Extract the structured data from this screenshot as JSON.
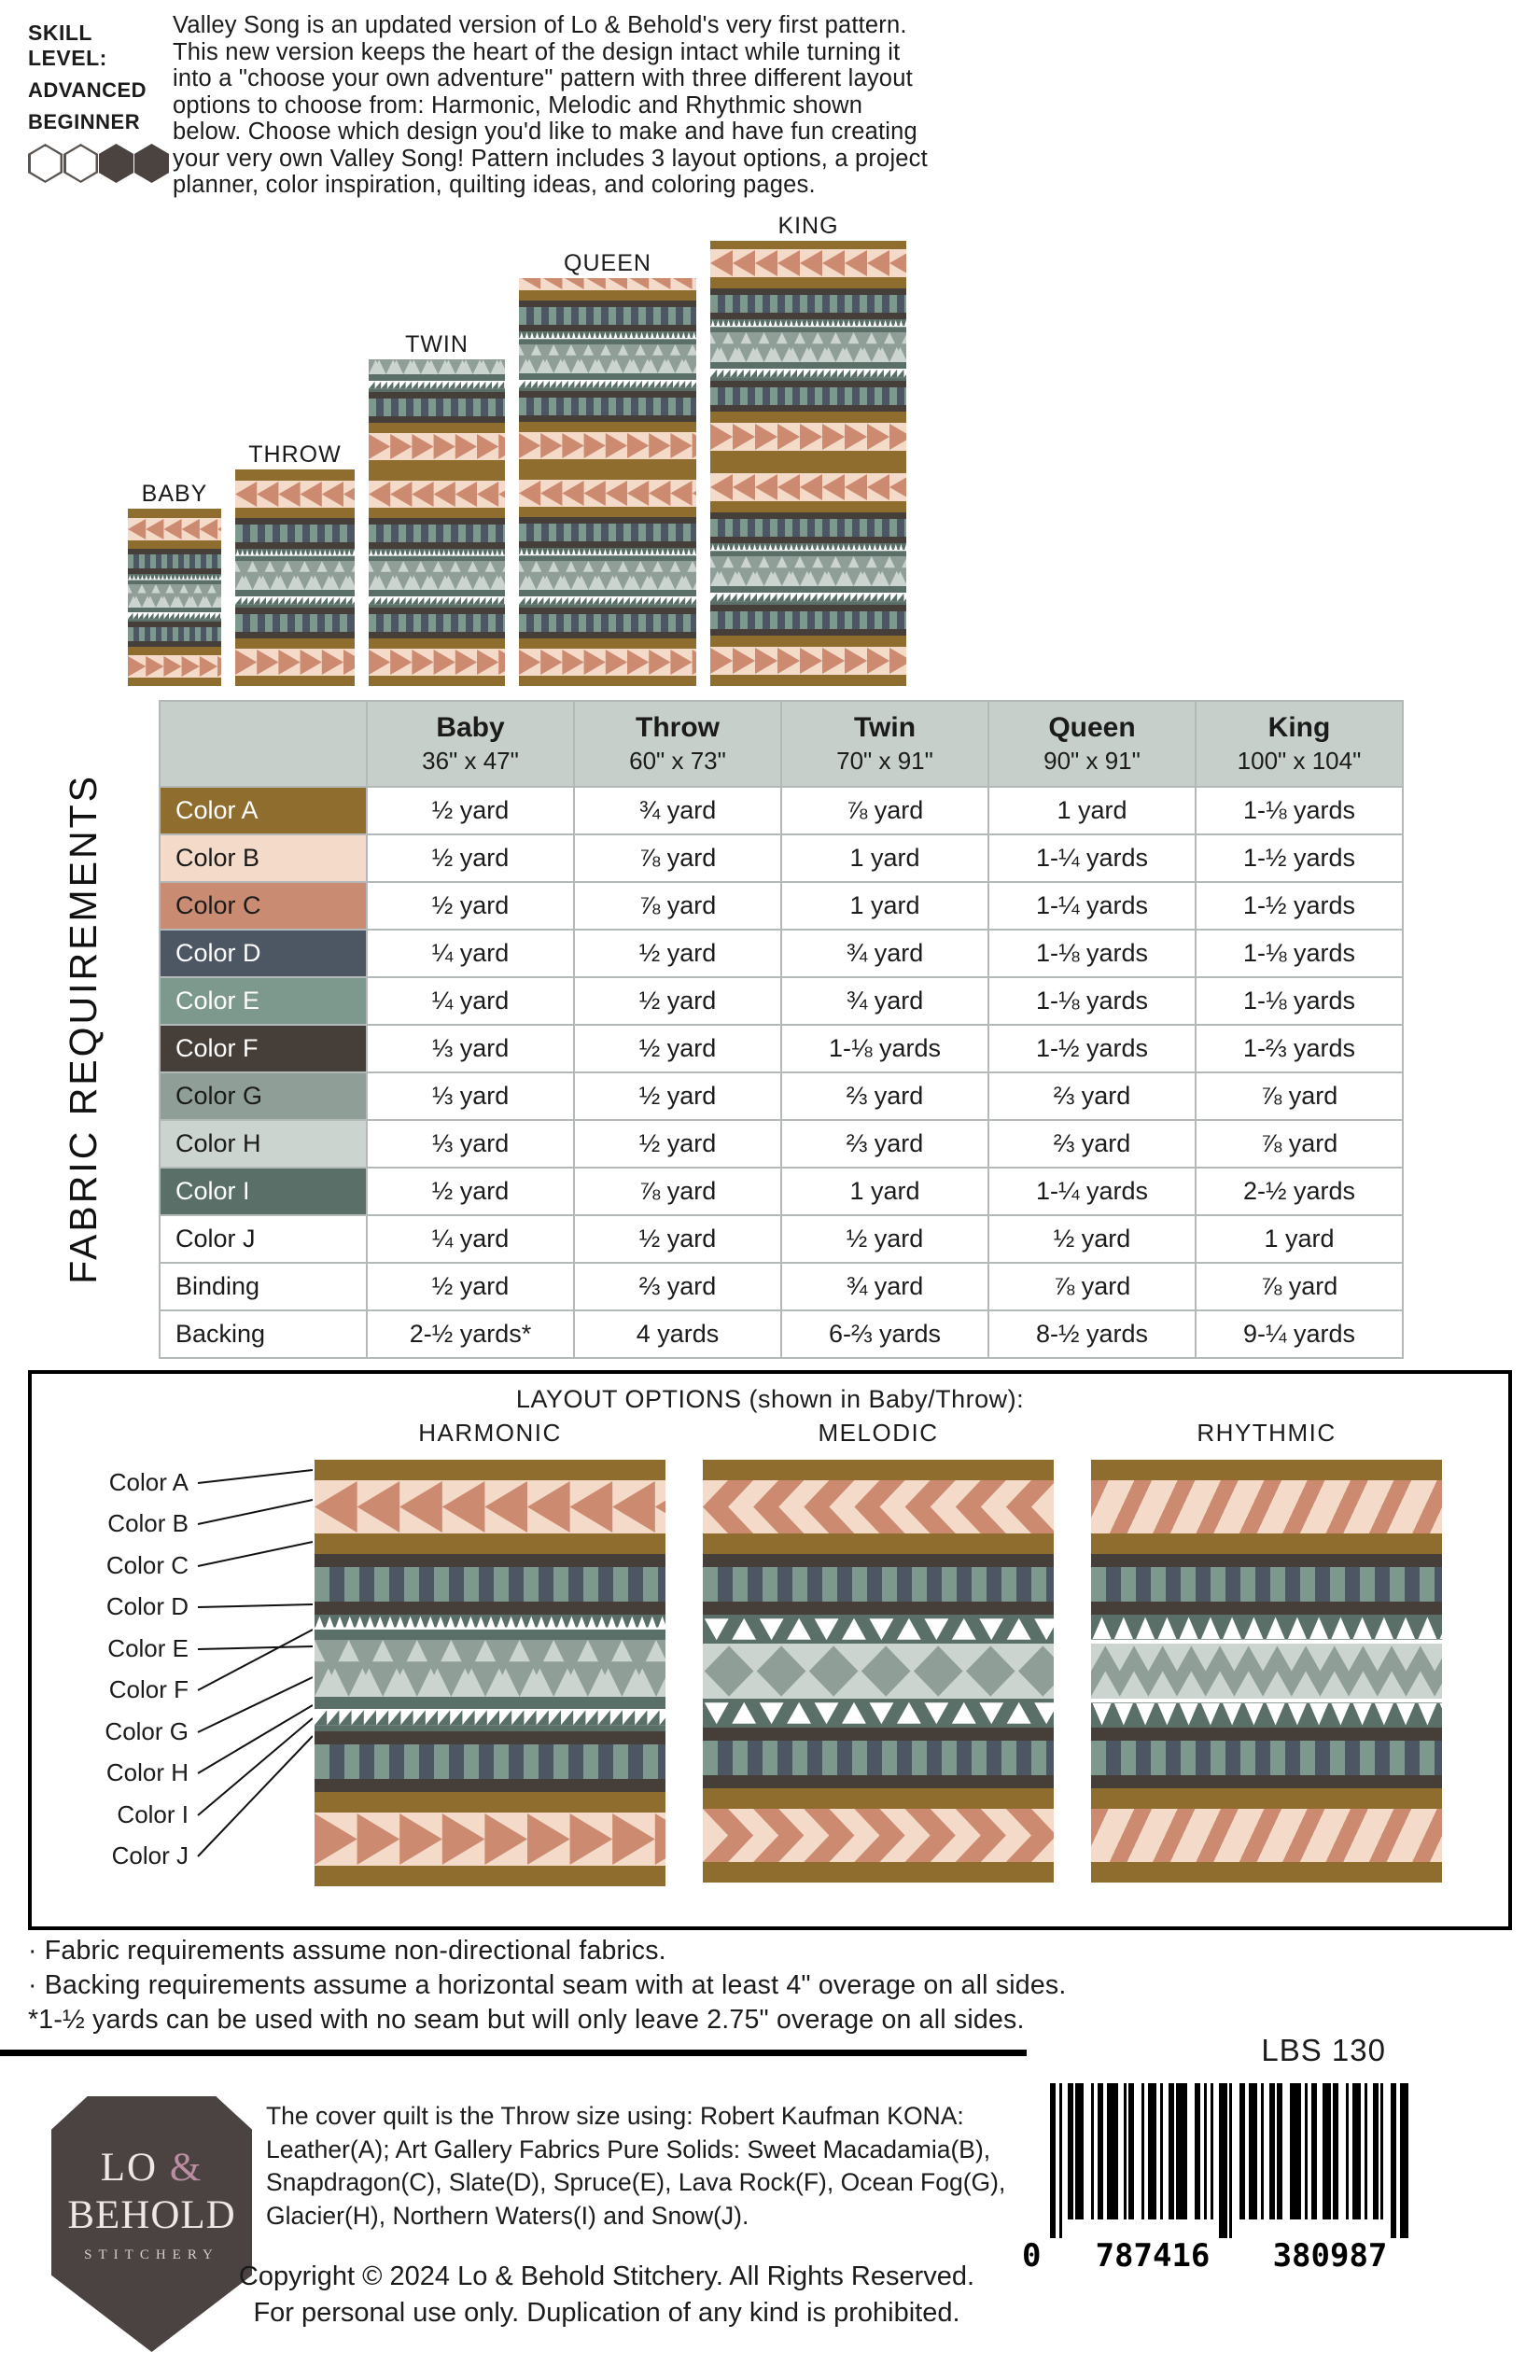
{
  "skill": {
    "label": "SKILL LEVEL:",
    "level_line1": "ADVANCED",
    "level_line2": "BEGINNER",
    "hexes_total": 4,
    "hexes_filled": 2
  },
  "intro": "Valley Song is an updated version of Lo & Behold's very first pattern. This new version keeps the heart of the design intact while turning it into a \"choose your own adventure\" pattern with three different layout options to choose from: Harmonic, Melodic and Rhythmic shown below. Choose which design you'd like to make and have fun creating your very own Valley Song! Pattern includes 3 layout options, a project planner, color inspiration, quilting ideas, and coloring pages.",
  "previews": [
    {
      "name": "BABY"
    },
    {
      "name": "THROW"
    },
    {
      "name": "TWIN"
    },
    {
      "name": "QUEEN"
    },
    {
      "name": "KING"
    }
  ],
  "table": {
    "side_label": "FABRIC REQUIREMENTS",
    "columns": [
      {
        "name": "Baby",
        "dims": "36\" x 47\""
      },
      {
        "name": "Throw",
        "dims": "60\" x 73\""
      },
      {
        "name": "Twin",
        "dims": "70\" x 91\""
      },
      {
        "name": "Queen",
        "dims": "90\" x 91\""
      },
      {
        "name": "King",
        "dims": "100\" x 104\""
      }
    ],
    "rows": [
      {
        "label": "Color A",
        "bg": "#8f6d2f",
        "fg": "#ffffff",
        "values": [
          "½ yard",
          "¾ yard",
          "⅞ yard",
          "1 yard",
          "1-⅛ yards"
        ]
      },
      {
        "label": "Color B",
        "bg": "#f4dac9",
        "fg": "#1b1b1b",
        "values": [
          "½ yard",
          "⅞ yard",
          "1 yard",
          "1-¼ yards",
          "1-½ yards"
        ]
      },
      {
        "label": "Color C",
        "bg": "#c98c73",
        "fg": "#1b1b1b",
        "values": [
          "½ yard",
          "⅞ yard",
          "1 yard",
          "1-¼ yards",
          "1-½ yards"
        ]
      },
      {
        "label": "Color D",
        "bg": "#4d5763",
        "fg": "#ffffff",
        "values": [
          "¼ yard",
          "½ yard",
          "¾ yard",
          "1-⅛ yards",
          "1-⅛ yards"
        ]
      },
      {
        "label": "Color E",
        "bg": "#7d998e",
        "fg": "#ffffff",
        "values": [
          "¼ yard",
          "½ yard",
          "¾ yard",
          "1-⅛ yards",
          "1-⅛ yards"
        ]
      },
      {
        "label": "Color F",
        "bg": "#463e39",
        "fg": "#ffffff",
        "values": [
          "⅓ yard",
          "½ yard",
          "1-⅛ yards",
          "1-½ yards",
          "1-⅔ yards"
        ]
      },
      {
        "label": "Color G",
        "bg": "#8f9f97",
        "fg": "#1b1b1b",
        "values": [
          "⅓ yard",
          "½ yard",
          "⅔ yard",
          "⅔ yard",
          "⅞ yard"
        ]
      },
      {
        "label": "Color H",
        "bg": "#ccd4d0",
        "fg": "#1b1b1b",
        "values": [
          "⅓ yard",
          "½ yard",
          "⅔ yard",
          "⅔ yard",
          "⅞ yard"
        ]
      },
      {
        "label": "Color I",
        "bg": "#5a6f68",
        "fg": "#ffffff",
        "values": [
          "½ yard",
          "⅞ yard",
          "1 yard",
          "1-¼ yards",
          "2-½ yards"
        ]
      },
      {
        "label": "Color J",
        "bg": "#ffffff",
        "fg": "#1b1b1b",
        "values": [
          "¼ yard",
          "½ yard",
          "½ yard",
          "½ yard",
          "1 yard"
        ]
      },
      {
        "label": "Binding",
        "bg": "#ffffff",
        "fg": "#1b1b1b",
        "values": [
          "½ yard",
          "⅔ yard",
          "¾ yard",
          "⅞ yard",
          "⅞ yard"
        ]
      },
      {
        "label": "Backing",
        "bg": "#ffffff",
        "fg": "#1b1b1b",
        "values": [
          "2-½ yards*",
          "4 yards",
          "6-⅔ yards",
          "8-½ yards",
          "9-¼ yards"
        ]
      }
    ]
  },
  "layout_options": {
    "title": "LAYOUT OPTIONS (shown in Baby/Throw):",
    "layouts": [
      {
        "name": "HARMONIC"
      },
      {
        "name": "MELODIC"
      },
      {
        "name": "RHYTHMIC"
      }
    ],
    "color_labels": [
      "Color A",
      "Color B",
      "Color C",
      "Color D",
      "Color E",
      "Color F",
      "Color G",
      "Color H",
      "Color I",
      "Color J"
    ]
  },
  "notes": [
    "· Fabric requirements assume non-directional fabrics.",
    "· Backing requirements assume a horizontal seam with at least 4\" overage on all sides.",
    "*1-½ yards can be used with no seam but will only leave 2.75\" overage on all sides."
  ],
  "footer": {
    "sku": "LBS 130",
    "logo": {
      "line1_a": "LO ",
      "line1_amp": "&",
      "line2": "BEHOLD",
      "line3": "STITCHERY"
    },
    "fabric_info": "The cover quilt is the Throw size using: Robert Kaufman KONA: Leather(A); Art Gallery Fabrics Pure Solids: Sweet Macadamia(B), Snapdragon(C), Slate(D), Spruce(E), Lava Rock(F), Ocean Fog(G), Glacier(H), Northern Waters(I) and Snow(J).",
    "copyright1": "Copyright © 2024 Lo & Behold Stitchery. All Rights Reserved.",
    "copyright2": "For personal use only. Duplication of any kind is prohibited.",
    "barcode_digit0": "0",
    "barcode_group1": "787416",
    "barcode_group2": "380987"
  },
  "palette": {
    "A": "#8f6d2f",
    "B": "#f4dac9",
    "C": "#cc8a70",
    "D": "#4d5763",
    "E": "#7d998e",
    "F": "#463e39",
    "G": "#8f9f97",
    "H": "#ccd4d0",
    "I": "#5a6f68",
    "J": "#ffffff"
  },
  "quilt_patterns": {
    "harmonic": [
      {
        "type": "solid",
        "c": [
          "A"
        ],
        "h": 22
      },
      {
        "type": "geese-left",
        "c": [
          "B",
          "C"
        ],
        "h": 56
      },
      {
        "type": "solid",
        "c": [
          "A"
        ],
        "h": 22
      },
      {
        "type": "solid",
        "c": [
          "F"
        ],
        "h": 14
      },
      {
        "type": "bars",
        "c": [
          "E",
          "D"
        ],
        "h": 36
      },
      {
        "type": "solid",
        "c": [
          "F"
        ],
        "h": 14
      },
      {
        "type": "tri-row-up",
        "c": [
          "I",
          "J"
        ],
        "h": 26
      },
      {
        "type": "zigzag",
        "c": [
          "H",
          "G"
        ],
        "h": 60
      },
      {
        "type": "solid",
        "c": [
          "I"
        ],
        "h": 13
      },
      {
        "type": "teeth",
        "c": [
          "J",
          "I"
        ],
        "h": 24
      },
      {
        "type": "solid",
        "c": [
          "F"
        ],
        "h": 14
      },
      {
        "type": "bars",
        "c": [
          "E",
          "D"
        ],
        "h": 36
      },
      {
        "type": "solid",
        "c": [
          "F"
        ],
        "h": 14
      },
      {
        "type": "solid",
        "c": [
          "A"
        ],
        "h": 22
      },
      {
        "type": "geese-right",
        "c": [
          "B",
          "C"
        ],
        "h": 56
      },
      {
        "type": "solid",
        "c": [
          "A"
        ],
        "h": 22
      }
    ],
    "melodic": [
      {
        "type": "solid",
        "c": [
          "A"
        ],
        "h": 22
      },
      {
        "type": "chevron-left",
        "c": [
          "B",
          "C"
        ],
        "h": 56
      },
      {
        "type": "solid",
        "c": [
          "A"
        ],
        "h": 22
      },
      {
        "type": "solid",
        "c": [
          "F"
        ],
        "h": 14
      },
      {
        "type": "bars",
        "c": [
          "E",
          "D"
        ],
        "h": 36
      },
      {
        "type": "solid",
        "c": [
          "F"
        ],
        "h": 14
      },
      {
        "type": "tri-updown",
        "c": [
          "I",
          "J"
        ],
        "h": 30
      },
      {
        "type": "diamonds",
        "c": [
          "H",
          "G"
        ],
        "h": 58
      },
      {
        "type": "tri-updown",
        "c": [
          "I",
          "J"
        ],
        "h": 30
      },
      {
        "type": "solid",
        "c": [
          "F"
        ],
        "h": 14
      },
      {
        "type": "bars",
        "c": [
          "E",
          "D"
        ],
        "h": 36
      },
      {
        "type": "solid",
        "c": [
          "F"
        ],
        "h": 14
      },
      {
        "type": "solid",
        "c": [
          "A"
        ],
        "h": 22
      },
      {
        "type": "chevron-right",
        "c": [
          "B",
          "C"
        ],
        "h": 56
      },
      {
        "type": "solid",
        "c": [
          "A"
        ],
        "h": 22
      }
    ],
    "rhythmic": [
      {
        "type": "solid",
        "c": [
          "A"
        ],
        "h": 22
      },
      {
        "type": "diag",
        "c": [
          "B",
          "C"
        ],
        "h": 56
      },
      {
        "type": "solid",
        "c": [
          "A"
        ],
        "h": 22
      },
      {
        "type": "solid",
        "c": [
          "F"
        ],
        "h": 14
      },
      {
        "type": "bars",
        "c": [
          "E",
          "D"
        ],
        "h": 36
      },
      {
        "type": "solid",
        "c": [
          "F"
        ],
        "h": 14
      },
      {
        "type": "tri-up",
        "c": [
          "I",
          "J"
        ],
        "h": 30
      },
      {
        "type": "trigrid",
        "c": [
          "H",
          "G"
        ],
        "h": 58
      },
      {
        "type": "tri-down",
        "c": [
          "I",
          "J"
        ],
        "h": 30
      },
      {
        "type": "solid",
        "c": [
          "F"
        ],
        "h": 14
      },
      {
        "type": "bars",
        "c": [
          "E",
          "D"
        ],
        "h": 36
      },
      {
        "type": "solid",
        "c": [
          "F"
        ],
        "h": 14
      },
      {
        "type": "solid",
        "c": [
          "A"
        ],
        "h": 22
      },
      {
        "type": "diag",
        "c": [
          "B",
          "C"
        ],
        "h": 56
      },
      {
        "type": "solid",
        "c": [
          "A"
        ],
        "h": 22
      }
    ]
  }
}
